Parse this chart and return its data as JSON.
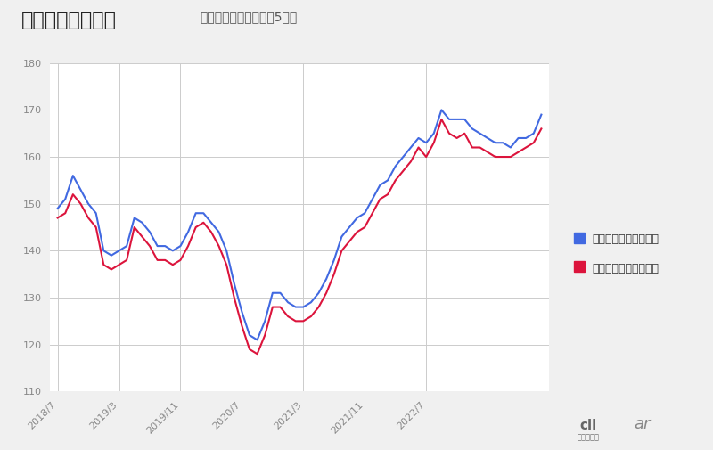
{
  "title_main": "ガソリン価格推移",
  "title_sub": "［レギュラー］［最近5年］",
  "background_color": "#f0f0f0",
  "plot_background": "#ffffff",
  "ylim": [
    110,
    180
  ],
  "yticks": [
    110,
    120,
    130,
    140,
    150,
    160,
    170,
    180
  ],
  "xtick_labels": [
    "2018/7",
    "2019/3",
    "2019/11",
    "2020/7",
    "2021/3",
    "2021/11",
    "2022/7"
  ],
  "xtick_pos": [
    0,
    8,
    16,
    24,
    32,
    40,
    48
  ],
  "color_blue": "#4169e1",
  "color_red": "#dc143c",
  "legend_blue": "現金価格（全国平均）",
  "legend_red": "会員価格（全国平均）",
  "tick_color": "#888888",
  "blue_data": [
    149,
    151,
    156,
    153,
    150,
    148,
    140,
    139,
    140,
    141,
    147,
    146,
    144,
    141,
    141,
    140,
    141,
    144,
    148,
    148,
    146,
    144,
    140,
    133,
    127,
    122,
    121,
    125,
    131,
    131,
    129,
    128,
    128,
    129,
    131,
    134,
    138,
    143,
    145,
    147,
    148,
    151,
    154,
    155,
    158,
    160,
    162,
    164,
    163,
    165,
    170,
    168,
    168,
    168,
    166,
    165,
    164,
    163,
    163,
    162,
    164,
    164,
    165,
    169
  ],
  "red_data": [
    147,
    148,
    152,
    150,
    147,
    145,
    137,
    136,
    137,
    138,
    145,
    143,
    141,
    138,
    138,
    137,
    138,
    141,
    145,
    146,
    144,
    141,
    137,
    130,
    124,
    119,
    118,
    122,
    128,
    128,
    126,
    125,
    125,
    126,
    128,
    131,
    135,
    140,
    142,
    144,
    145,
    148,
    151,
    152,
    155,
    157,
    159,
    162,
    160,
    163,
    168,
    165,
    164,
    165,
    162,
    162,
    161,
    160,
    160,
    160,
    161,
    162,
    163,
    166
  ]
}
